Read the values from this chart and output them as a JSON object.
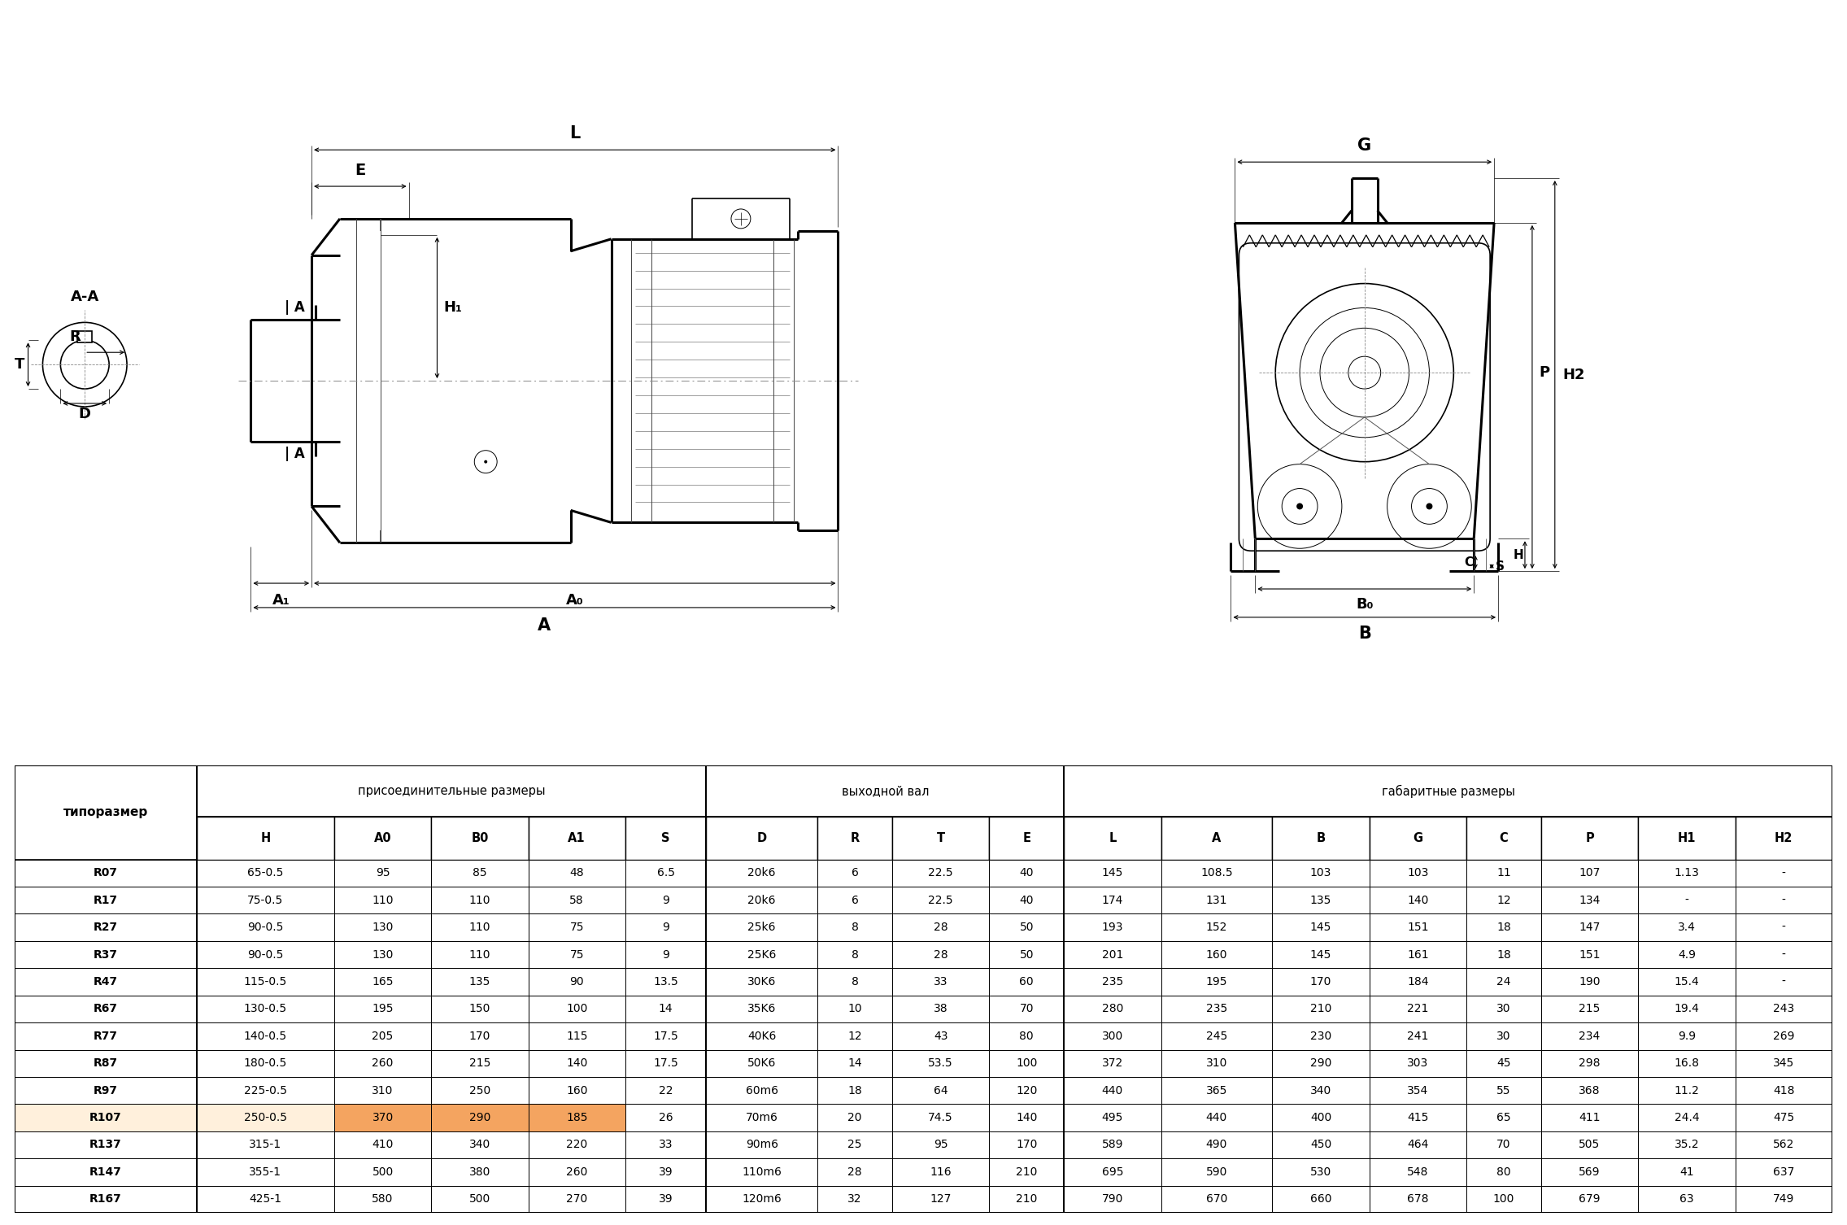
{
  "table_header_group1": "присоединительные размеры",
  "table_header_group2": "выходной вал",
  "table_header_group3": "габаритные размеры",
  "col_tiporazmer": "типоразмер",
  "columns": [
    "типоразмер",
    "H",
    "A0",
    "B0",
    "A1",
    "S",
    "D",
    "R",
    "T",
    "E",
    "L",
    "A",
    "B",
    "G",
    "C",
    "P",
    "H1",
    "H2"
  ],
  "rows": [
    [
      "R07",
      "65-0.5",
      "95",
      "85",
      "48",
      "6.5",
      "20k6",
      "6",
      "22.5",
      "40",
      "145",
      "108.5",
      "103",
      "103",
      "11",
      "107",
      "1.13",
      "-"
    ],
    [
      "R17",
      "75-0.5",
      "110",
      "110",
      "58",
      "9",
      "20k6",
      "6",
      "22.5",
      "40",
      "174",
      "131",
      "135",
      "140",
      "12",
      "134",
      "-",
      "-"
    ],
    [
      "R27",
      "90-0.5",
      "130",
      "110",
      "75",
      "9",
      "25k6",
      "8",
      "28",
      "50",
      "193",
      "152",
      "145",
      "151",
      "18",
      "147",
      "3.4",
      "-"
    ],
    [
      "R37",
      "90-0.5",
      "130",
      "110",
      "75",
      "9",
      "25K6",
      "8",
      "28",
      "50",
      "201",
      "160",
      "145",
      "161",
      "18",
      "151",
      "4.9",
      "-"
    ],
    [
      "R47",
      "115-0.5",
      "165",
      "135",
      "90",
      "13.5",
      "30K6",
      "8",
      "33",
      "60",
      "235",
      "195",
      "170",
      "184",
      "24",
      "190",
      "15.4",
      "-"
    ],
    [
      "R67",
      "130-0.5",
      "195",
      "150",
      "100",
      "14",
      "35K6",
      "10",
      "38",
      "70",
      "280",
      "235",
      "210",
      "221",
      "30",
      "215",
      "19.4",
      "243"
    ],
    [
      "R77",
      "140-0.5",
      "205",
      "170",
      "115",
      "17.5",
      "40K6",
      "12",
      "43",
      "80",
      "300",
      "245",
      "230",
      "241",
      "30",
      "234",
      "9.9",
      "269"
    ],
    [
      "R87",
      "180-0.5",
      "260",
      "215",
      "140",
      "17.5",
      "50K6",
      "14",
      "53.5",
      "100",
      "372",
      "310",
      "290",
      "303",
      "45",
      "298",
      "16.8",
      "345"
    ],
    [
      "R97",
      "225-0.5",
      "310",
      "250",
      "160",
      "22",
      "60m6",
      "18",
      "64",
      "120",
      "440",
      "365",
      "340",
      "354",
      "55",
      "368",
      "11.2",
      "418"
    ],
    [
      "R107",
      "250-0.5",
      "370",
      "290",
      "185",
      "26",
      "70m6",
      "20",
      "74.5",
      "140",
      "495",
      "440",
      "400",
      "415",
      "65",
      "411",
      "24.4",
      "475"
    ],
    [
      "R137",
      "315-1",
      "410",
      "340",
      "220",
      "33",
      "90m6",
      "25",
      "95",
      "170",
      "589",
      "490",
      "450",
      "464",
      "70",
      "505",
      "35.2",
      "562"
    ],
    [
      "R147",
      "355-1",
      "500",
      "380",
      "260",
      "39",
      "110m6",
      "28",
      "116",
      "210",
      "695",
      "590",
      "530",
      "548",
      "80",
      "569",
      "41",
      "637"
    ],
    [
      "R167",
      "425-1",
      "580",
      "500",
      "270",
      "39",
      "120m6",
      "32",
      "127",
      "210",
      "790",
      "670",
      "660",
      "678",
      "100",
      "679",
      "63",
      "749"
    ]
  ],
  "highlighted_row_index": 9,
  "highlight_col_indices": [
    2,
    3,
    4
  ],
  "highlight_color_R107": "#F4A460",
  "highlight_color_R137_H": "#F4A460",
  "highlight_color_light": "#FFF0DC",
  "bg_color": "#FFFFFF"
}
